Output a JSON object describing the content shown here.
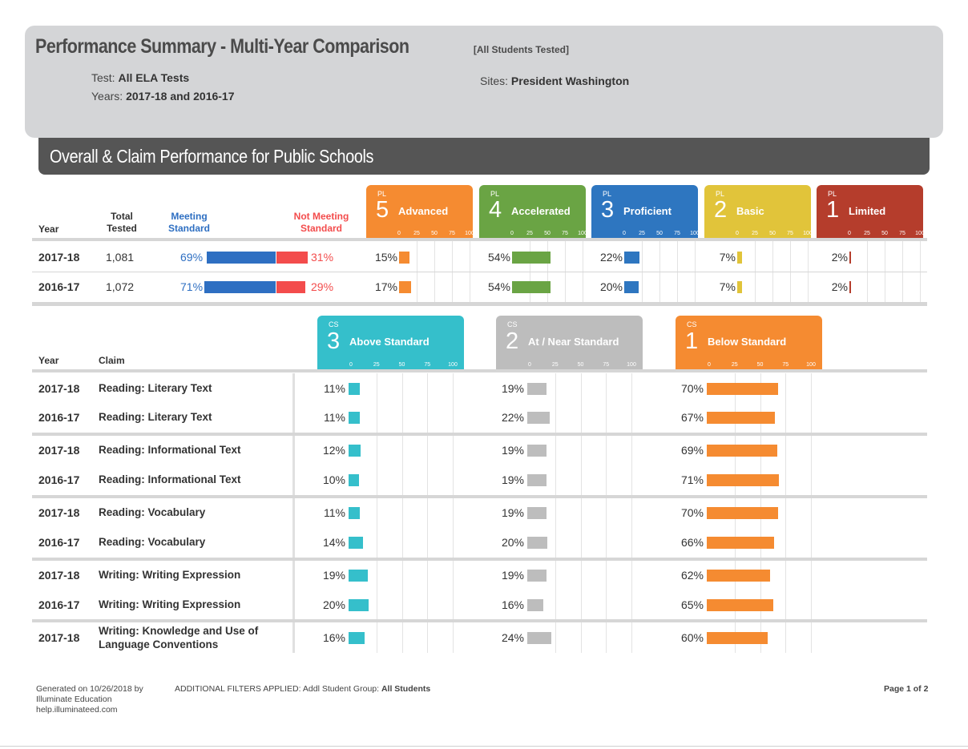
{
  "header": {
    "title": "Performance Summary - Multi-Year Comparison",
    "subtitle": "[All Students Tested]",
    "test_label": "Test:",
    "test_value": "All ELA Tests",
    "years_label": "Years:",
    "years_value": "2017-18 and 2016-17",
    "sites_label": "Sites:",
    "sites_value": "President Washington"
  },
  "section_title": "Overall & Claim Performance for Public Schools",
  "overall": {
    "headers": {
      "year": "Year",
      "total_tested": "Total Tested",
      "meeting": "Meeting Standard",
      "not_meeting": "Not Meeting Standard"
    },
    "levels": [
      {
        "tag": "PL",
        "num": "5",
        "name": "Advanced",
        "color": "#f58b31"
      },
      {
        "tag": "PL",
        "num": "4",
        "name": "Accelerated",
        "color": "#6aa444"
      },
      {
        "tag": "PL",
        "num": "3",
        "name": "Proficient",
        "color": "#2e76c0"
      },
      {
        "tag": "PL",
        "num": "2",
        "name": "Basic",
        "color": "#e1c43a"
      },
      {
        "tag": "PL",
        "num": "1",
        "name": "Limited",
        "color": "#b53d2c"
      }
    ],
    "ticks": [
      "0",
      "25",
      "50",
      "75",
      "100"
    ],
    "rows": [
      {
        "year": "2017-18",
        "total": "1,081",
        "meeting": "69%",
        "not_meeting": "31%",
        "meeting_value": 69,
        "not_meeting_value": 31,
        "levels": [
          "15%",
          "54%",
          "22%",
          "7%",
          "2%"
        ],
        "level_values": [
          15,
          54,
          22,
          7,
          2
        ]
      },
      {
        "year": "2016-17",
        "total": "1,072",
        "meeting": "71%",
        "not_meeting": "29%",
        "meeting_value": 71,
        "not_meeting_value": 29,
        "levels": [
          "17%",
          "54%",
          "20%",
          "7%",
          "2%"
        ],
        "level_values": [
          17,
          54,
          20,
          7,
          2
        ]
      }
    ],
    "meeting_color": "#2e6fc2",
    "not_meeting_color": "#f34c4c"
  },
  "claims": {
    "headers": {
      "year": "Year",
      "claim": "Claim"
    },
    "levels": [
      {
        "tag": "CS",
        "num": "3",
        "name": "Above Standard",
        "color": "#35bfcb"
      },
      {
        "tag": "CS",
        "num": "2",
        "name": "At / Near Standard",
        "color": "#bdbdbd"
      },
      {
        "tag": "CS",
        "num": "1",
        "name": "Below Standard",
        "color": "#f58b31"
      }
    ],
    "ticks": [
      "0",
      "25",
      "50",
      "75",
      "100"
    ],
    "rows": [
      {
        "year": "2017-18",
        "claim": "Reading: Literary Text",
        "labels": [
          "11%",
          "19%",
          "70%"
        ],
        "values": [
          11,
          19,
          70
        ]
      },
      {
        "year": "2016-17",
        "claim": "Reading: Literary Text",
        "labels": [
          "11%",
          "22%",
          "67%"
        ],
        "values": [
          11,
          22,
          67
        ]
      },
      {
        "year": "2017-18",
        "claim": "Reading: Informational Text",
        "labels": [
          "12%",
          "19%",
          "69%"
        ],
        "values": [
          12,
          19,
          69
        ]
      },
      {
        "year": "2016-17",
        "claim": "Reading: Informational Text",
        "labels": [
          "10%",
          "19%",
          "71%"
        ],
        "values": [
          10,
          19,
          71
        ]
      },
      {
        "year": "2017-18",
        "claim": "Reading: Vocabulary",
        "labels": [
          "11%",
          "19%",
          "70%"
        ],
        "values": [
          11,
          19,
          70
        ]
      },
      {
        "year": "2016-17",
        "claim": "Reading: Vocabulary",
        "labels": [
          "14%",
          "20%",
          "66%"
        ],
        "values": [
          14,
          20,
          66
        ]
      },
      {
        "year": "2017-18",
        "claim": "Writing: Writing Expression",
        "labels": [
          "19%",
          "19%",
          "62%"
        ],
        "values": [
          19,
          19,
          62
        ]
      },
      {
        "year": "2016-17",
        "claim": "Writing: Writing Expression",
        "labels": [
          "20%",
          "16%",
          "65%"
        ],
        "values": [
          20,
          16,
          65
        ]
      },
      {
        "year": "2017-18",
        "claim": "Writing: Knowledge and Use of Language Conventions",
        "labels": [
          "16%",
          "24%",
          "60%"
        ],
        "values": [
          16,
          24,
          60
        ]
      }
    ]
  },
  "footer": {
    "generated_line1": "Generated on 10/26/2018 by",
    "generated_line2": "Illuminate Education",
    "generated_line3": "help.illuminateed.com",
    "filters_label": "ADDITIONAL FILTERS APPLIED:",
    "filters_group_label": "Addl Student Group:",
    "filters_group_value": "All Students",
    "page": "Page 1 of 2"
  }
}
